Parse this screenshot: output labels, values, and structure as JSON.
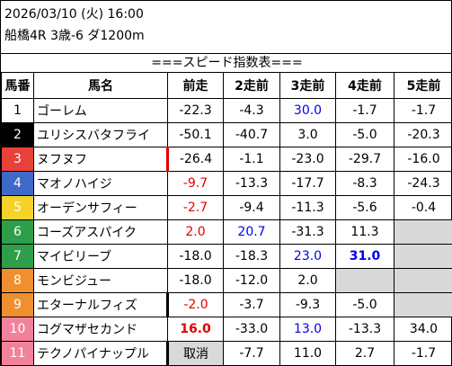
{
  "header": {
    "date_line": "2026/03/10 (火) 16:00",
    "race_line": "船橋4R 3歳-6 ダ1200m"
  },
  "section_title": "===スピード指数表===",
  "columns": [
    "馬番",
    "馬名",
    "前走",
    "2走前",
    "3走前",
    "4走前",
    "5走前"
  ],
  "rows": [
    {
      "no": "1",
      "name": "ゴーレム",
      "v": [
        "-22.3",
        "-4.3",
        "30.0",
        "-1.7",
        "-1.7"
      ],
      "bg": "#ffffff",
      "fg": "#000000"
    },
    {
      "no": "2",
      "name": "ユリシスバタフライ",
      "v": [
        "-50.1",
        "-40.7",
        "3.0",
        "-5.0",
        "-20.3"
      ],
      "bg": "#000000",
      "fg": "#ffffff"
    },
    {
      "no": "3",
      "name": "ヌフヌフ",
      "v": [
        "-26.4",
        "-1.1",
        "-23.0",
        "-29.7",
        "-16.0"
      ],
      "bg": "#e8413a",
      "fg": "#ffffff"
    },
    {
      "no": "4",
      "name": "マオノハイジ",
      "v": [
        "-9.7",
        "-13.3",
        "-17.7",
        "-8.3",
        "-24.3"
      ],
      "bg": "#3f69c8",
      "fg": "#ffffff"
    },
    {
      "no": "5",
      "name": "オーデンサフィー",
      "v": [
        "-2.7",
        "-9.4",
        "-11.3",
        "-5.6",
        "-0.4"
      ],
      "bg": "#f4d22a",
      "fg": "#ffffff"
    },
    {
      "no": "6",
      "name": "コーズアスパイク",
      "v": [
        "2.0",
        "20.7",
        "-31.3",
        "11.3",
        ""
      ],
      "bg": "#2e9e4a",
      "fg": "#ffffff"
    },
    {
      "no": "7",
      "name": "マイビリーブ",
      "v": [
        "-18.0",
        "-18.3",
        "23.0",
        "31.0",
        ""
      ],
      "bg": "#2e9e4a",
      "fg": "#ffffff"
    },
    {
      "no": "8",
      "name": "モンビジュー",
      "v": [
        "-18.0",
        "-12.0",
        "2.0",
        "",
        ""
      ],
      "bg": "#ef8f2f",
      "fg": "#ffffff"
    },
    {
      "no": "9",
      "name": "エターナルフィズ",
      "v": [
        "-2.0",
        "-3.7",
        "-9.3",
        "-5.0",
        ""
      ],
      "bg": "#ef8f2f",
      "fg": "#ffffff"
    },
    {
      "no": "10",
      "name": "コグマザセカンド",
      "v": [
        "16.0",
        "-33.0",
        "13.0",
        "-13.3",
        "34.0"
      ],
      "bg": "#f2829b",
      "fg": "#ffffff"
    },
    {
      "no": "11",
      "name": "テクノパイナップル",
      "v": [
        "取消",
        "-7.7",
        "11.0",
        "2.7",
        "-1.7"
      ],
      "bg": "#f2829b",
      "fg": "#ffffff"
    }
  ],
  "value_styles": {
    "0": [
      "",
      "",
      "blue",
      "",
      ""
    ],
    "1": [
      "",
      "",
      "",
      "",
      ""
    ],
    "2": [
      "",
      "",
      "",
      "",
      ""
    ],
    "3": [
      "red",
      "",
      "",
      "",
      ""
    ],
    "4": [
      "red",
      "",
      "",
      "",
      ""
    ],
    "5": [
      "red",
      "blue",
      "",
      "",
      "grey"
    ],
    "6": [
      "",
      "",
      "blue",
      "blue bold",
      "grey"
    ],
    "7": [
      "",
      "",
      "",
      "grey",
      "grey"
    ],
    "8": [
      "red",
      "",
      "",
      "",
      "grey"
    ],
    "9": [
      "red bold",
      "",
      "blue",
      "",
      ""
    ],
    "10": [
      "grey",
      "",
      "",
      "",
      ""
    ]
  },
  "name_markers": {
    "2": "red",
    "8": "black",
    "10": "black"
  }
}
